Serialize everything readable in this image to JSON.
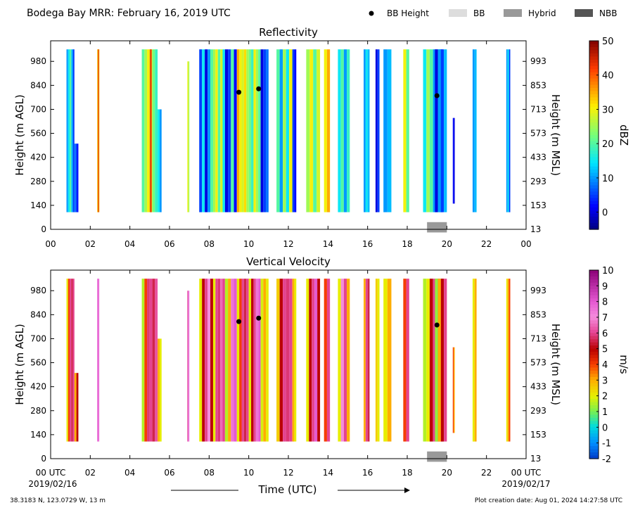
{
  "header": {
    "title": "Bodega Bay MRR:  February 16, 2019 UTC",
    "legend": [
      {
        "label": "BB Height",
        "kind": "dot",
        "color": "#000000"
      },
      {
        "label": "BB",
        "kind": "box",
        "color": "#dddddd"
      },
      {
        "label": "Hybrid",
        "kind": "box",
        "color": "#999999"
      },
      {
        "label": "NBB",
        "kind": "box",
        "color": "#555555"
      }
    ]
  },
  "footer": {
    "location": "38.3183 N, 123.0729 W, 13 m",
    "creation": "Plot creation date: Aug 01, 2024 14:27:58 UTC",
    "time_label": "Time (UTC)",
    "start_date": "2019/02/16",
    "end_date": "2019/02/17"
  },
  "chart_data": [
    {
      "type": "heatmap",
      "title": "Reflectivity",
      "ylabel": "Height (m AGL)",
      "ylabel_right": "Height (m MSL)",
      "colorbar_label": "dBZ",
      "xlim": [
        0,
        24
      ],
      "ylim": [
        0,
        1100
      ],
      "x_ticks": [
        "00",
        "02",
        "04",
        "06",
        "08",
        "10",
        "12",
        "14",
        "16",
        "18",
        "20",
        "22",
        "00"
      ],
      "y_ticks": [
        0,
        140,
        280,
        420,
        560,
        700,
        840,
        980
      ],
      "y_ticks_right": [
        "13",
        "153",
        "293",
        "433",
        "573",
        "713",
        "853",
        "993"
      ],
      "colorbar_range": [
        -5,
        50
      ],
      "colorbar_ticks": [
        0,
        10,
        20,
        30,
        40,
        50
      ],
      "bb_height_points": [
        {
          "x": 9.5,
          "y": 800
        },
        {
          "x": 10.5,
          "y": 820
        },
        {
          "x": 19.5,
          "y": 780
        }
      ],
      "bb_type_segments": [
        {
          "start": 19.0,
          "end": 20.0,
          "type": "Hybrid"
        }
      ],
      "echo_columns": [
        {
          "start": 0.8,
          "end": 1.2,
          "top": 1050,
          "bottom": 100,
          "values": [
            10,
            15,
            20,
            12,
            5
          ]
        },
        {
          "start": 1.2,
          "end": 1.4,
          "top": 500,
          "bottom": 100,
          "values": [
            8,
            5,
            2
          ]
        },
        {
          "start": 2.35,
          "end": 2.45,
          "top": 1050,
          "bottom": 100,
          "values": [
            30,
            40,
            45,
            35
          ]
        },
        {
          "start": 4.6,
          "end": 5.4,
          "top": 1050,
          "bottom": 100,
          "values": [
            20,
            25,
            30,
            28,
            22,
            18
          ]
        },
        {
          "start": 5.0,
          "end": 5.1,
          "top": 1050,
          "bottom": 100,
          "values": [
            40,
            45,
            42
          ]
        },
        {
          "start": 5.4,
          "end": 5.6,
          "top": 700,
          "bottom": 100,
          "values": [
            15,
            10
          ]
        },
        {
          "start": 6.9,
          "end": 7.0,
          "top": 980,
          "bottom": 100,
          "values": [
            30,
            25
          ]
        },
        {
          "start": 7.5,
          "end": 8.2,
          "top": 1050,
          "bottom": 100,
          "values": [
            5,
            15,
            0,
            10,
            20
          ]
        },
        {
          "start": 8.2,
          "end": 8.8,
          "top": 1050,
          "bottom": 100,
          "values": [
            25,
            30,
            20,
            28,
            15
          ]
        },
        {
          "start": 8.8,
          "end": 9.4,
          "top": 1050,
          "bottom": 100,
          "values": [
            0,
            5,
            20,
            2
          ]
        },
        {
          "start": 9.4,
          "end": 10.0,
          "top": 1050,
          "bottom": 100,
          "values": [
            35,
            30,
            28,
            32,
            25
          ]
        },
        {
          "start": 10.0,
          "end": 10.6,
          "top": 1050,
          "bottom": 100,
          "values": [
            22,
            18,
            30,
            25,
            20
          ]
        },
        {
          "start": 10.6,
          "end": 11.0,
          "top": 1050,
          "bottom": 100,
          "values": [
            0,
            5,
            8
          ]
        },
        {
          "start": 11.4,
          "end": 12.2,
          "top": 1050,
          "bottom": 100,
          "values": [
            20,
            10,
            25,
            15,
            30
          ]
        },
        {
          "start": 12.2,
          "end": 12.4,
          "top": 1050,
          "bottom": 100,
          "values": [
            5,
            2
          ]
        },
        {
          "start": 12.9,
          "end": 13.6,
          "top": 1050,
          "bottom": 100,
          "values": [
            25,
            30,
            20,
            28
          ]
        },
        {
          "start": 13.8,
          "end": 14.1,
          "top": 1050,
          "bottom": 100,
          "values": [
            30,
            35
          ]
        },
        {
          "start": 14.5,
          "end": 15.1,
          "top": 1050,
          "bottom": 100,
          "values": [
            15,
            20,
            10,
            18
          ]
        },
        {
          "start": 15.8,
          "end": 16.1,
          "top": 1050,
          "bottom": 100,
          "values": [
            10,
            15,
            12
          ]
        },
        {
          "start": 16.4,
          "end": 16.6,
          "top": 1050,
          "bottom": 100,
          "values": [
            0,
            5
          ]
        },
        {
          "start": 16.8,
          "end": 17.2,
          "top": 1050,
          "bottom": 100,
          "values": [
            10,
            12
          ]
        },
        {
          "start": 17.8,
          "end": 18.1,
          "top": 1050,
          "bottom": 100,
          "values": [
            30,
            20
          ]
        },
        {
          "start": 18.8,
          "end": 19.8,
          "top": 1050,
          "bottom": 100,
          "values": [
            15,
            25,
            20,
            10,
            18,
            5
          ]
        },
        {
          "start": 19.4,
          "end": 20.0,
          "top": 1050,
          "bottom": 100,
          "values": [
            0,
            10,
            5,
            12
          ]
        },
        {
          "start": 20.3,
          "end": 20.4,
          "top": 650,
          "bottom": 150,
          "values": [
            2,
            0
          ]
        },
        {
          "start": 21.3,
          "end": 21.5,
          "top": 1050,
          "bottom": 100,
          "values": [
            10,
            12
          ]
        },
        {
          "start": 23.0,
          "end": 23.2,
          "top": 1050,
          "bottom": 100,
          "values": [
            10,
            15,
            5
          ]
        }
      ]
    },
    {
      "type": "heatmap",
      "title": "Vertical Velocity",
      "ylabel": "Height (m AGL)",
      "ylabel_right": "Height (m MSL)",
      "colorbar_label": "m/s",
      "xlim": [
        0,
        24
      ],
      "ylim": [
        0,
        1100
      ],
      "x_ticks": [
        "00 UTC",
        "02",
        "04",
        "06",
        "08",
        "10",
        "12",
        "14",
        "16",
        "18",
        "20",
        "22",
        "00 UTC"
      ],
      "y_ticks": [
        0,
        140,
        280,
        420,
        560,
        700,
        840,
        980
      ],
      "y_ticks_right": [
        "13",
        "153",
        "293",
        "433",
        "573",
        "713",
        "853",
        "993"
      ],
      "colorbar_range": [
        -2,
        10
      ],
      "colorbar_ticks": [
        -2,
        -1,
        0,
        1,
        2,
        3,
        4,
        5,
        6,
        7,
        8,
        9,
        10
      ],
      "bb_height_points": [
        {
          "x": 9.5,
          "y": 800
        },
        {
          "x": 10.5,
          "y": 820
        },
        {
          "x": 19.5,
          "y": 780
        }
      ],
      "bb_type_segments": [
        {
          "start": 19.0,
          "end": 20.0,
          "type": "Hybrid"
        }
      ],
      "echo_columns": [
        {
          "start": 0.8,
          "end": 1.2,
          "top": 1050,
          "bottom": 100,
          "values": [
            2,
            4,
            6,
            5.5,
            6
          ]
        },
        {
          "start": 1.2,
          "end": 1.4,
          "top": 500,
          "bottom": 100,
          "values": [
            3,
            5
          ]
        },
        {
          "start": 2.35,
          "end": 2.45,
          "top": 1050,
          "bottom": 100,
          "values": [
            8,
            7.5,
            8
          ]
        },
        {
          "start": 4.6,
          "end": 5.4,
          "top": 1050,
          "bottom": 100,
          "values": [
            1.5,
            4,
            5.8,
            6,
            5.5,
            6.2
          ]
        },
        {
          "start": 5.4,
          "end": 5.6,
          "top": 700,
          "bottom": 100,
          "values": [
            3,
            2
          ]
        },
        {
          "start": 6.9,
          "end": 7.0,
          "top": 980,
          "bottom": 100,
          "values": [
            6,
            8,
            7.5
          ]
        },
        {
          "start": 7.5,
          "end": 8.2,
          "top": 1050,
          "bottom": 100,
          "values": [
            2,
            5,
            6,
            7,
            5
          ]
        },
        {
          "start": 8.2,
          "end": 8.8,
          "top": 1050,
          "bottom": 100,
          "values": [
            2,
            6,
            5.8,
            6.5,
            6
          ]
        },
        {
          "start": 8.8,
          "end": 9.4,
          "top": 1050,
          "bottom": 100,
          "values": [
            1.5,
            3,
            7.5,
            8
          ]
        },
        {
          "start": 9.4,
          "end": 10.0,
          "top": 1050,
          "bottom": 100,
          "values": [
            2,
            4,
            6,
            5.5,
            6
          ]
        },
        {
          "start": 10.0,
          "end": 10.6,
          "top": 1050,
          "bottom": 100,
          "values": [
            2,
            5,
            6,
            7.5,
            8
          ]
        },
        {
          "start": 10.6,
          "end": 11.0,
          "top": 1050,
          "bottom": 100,
          "values": [
            1.8,
            3,
            2
          ]
        },
        {
          "start": 11.4,
          "end": 12.2,
          "top": 1050,
          "bottom": 100,
          "values": [
            2.5,
            5,
            6,
            5.8,
            6
          ]
        },
        {
          "start": 12.2,
          "end": 12.4,
          "top": 1050,
          "bottom": 100,
          "values": [
            3,
            2
          ]
        },
        {
          "start": 12.9,
          "end": 13.6,
          "top": 1050,
          "bottom": 100,
          "values": [
            2,
            5,
            6,
            8,
            5
          ]
        },
        {
          "start": 13.8,
          "end": 14.1,
          "top": 1050,
          "bottom": 100,
          "values": [
            4,
            6
          ]
        },
        {
          "start": 14.5,
          "end": 15.1,
          "top": 1050,
          "bottom": 100,
          "values": [
            2,
            7,
            6,
            3
          ]
        },
        {
          "start": 15.8,
          "end": 16.1,
          "top": 1050,
          "bottom": 100,
          "values": [
            3,
            6,
            5.5
          ]
        },
        {
          "start": 16.4,
          "end": 16.6,
          "top": 1050,
          "bottom": 100,
          "values": [
            2.5,
            2
          ]
        },
        {
          "start": 16.8,
          "end": 17.2,
          "top": 1050,
          "bottom": 100,
          "values": [
            2,
            3
          ]
        },
        {
          "start": 17.8,
          "end": 18.1,
          "top": 1050,
          "bottom": 100,
          "values": [
            4,
            6
          ]
        },
        {
          "start": 18.8,
          "end": 19.8,
          "top": 1050,
          "bottom": 100,
          "values": [
            1.5,
            2,
            5,
            6,
            5.8,
            6.5
          ]
        },
        {
          "start": 19.4,
          "end": 20.0,
          "top": 1050,
          "bottom": 100,
          "values": [
            1.2,
            3,
            5,
            6
          ]
        },
        {
          "start": 20.3,
          "end": 20.4,
          "top": 650,
          "bottom": 150,
          "values": [
            4,
            3
          ]
        },
        {
          "start": 21.3,
          "end": 21.5,
          "top": 1050,
          "bottom": 100,
          "values": [
            2,
            3
          ]
        },
        {
          "start": 23.0,
          "end": 23.2,
          "top": 1050,
          "bottom": 100,
          "values": [
            2,
            3,
            4
          ]
        }
      ]
    }
  ]
}
